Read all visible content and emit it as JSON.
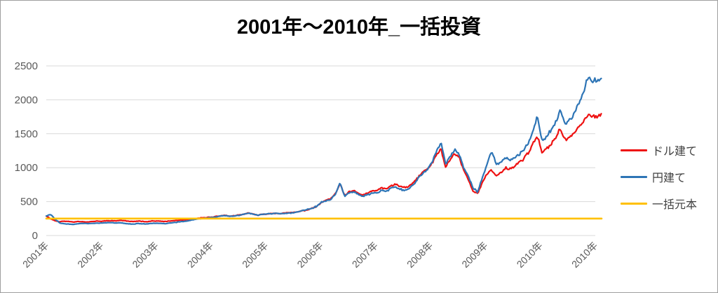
{
  "title": "2001年〜2010年_一括投資",
  "colors": {
    "grid": "#d9d9d9",
    "axis_text": "#595959",
    "legend_text": "#404040",
    "frame_border": "#9e9e9e",
    "background": "#ffffff",
    "title_text": "#000000"
  },
  "chart_data": {
    "type": "line",
    "title": "2001年〜2010年_一括投資",
    "xlabel": "",
    "ylabel": "",
    "ylim": [
      0,
      2500
    ],
    "y_ticks": [
      0,
      500,
      1000,
      1500,
      2000,
      2500
    ],
    "x_tick_labels": [
      "2001年",
      "2002年",
      "2003年",
      "2004年",
      "2005年",
      "2006年",
      "2007年",
      "2008年",
      "2009年",
      "2010年",
      "2010年"
    ],
    "x_start_year": 2001,
    "x_step_months": 1,
    "grid": true,
    "legend_position": "right",
    "series": [
      {
        "name": "ドル建て",
        "color": "#ee1111",
        "width": 2.2,
        "jitter_pct": 2.2,
        "seed": 11,
        "values": [
          290,
          245,
          215,
          205,
          212,
          206,
          200,
          208,
          204,
          200,
          206,
          212,
          210,
          216,
          220,
          214,
          224,
          218,
          210,
          205,
          214,
          209,
          205,
          214,
          214,
          210,
          206,
          214,
          220,
          226,
          231,
          236,
          245,
          254,
          260,
          266,
          271,
          281,
          291,
          296,
          286,
          291,
          301,
          311,
          331,
          321,
          296,
          311,
          319,
          324,
          329,
          325,
          331,
          336,
          341,
          351,
          366,
          381,
          401,
          431,
          490,
          520,
          540,
          620,
          760,
          590,
          640,
          660,
          620,
          600,
          625,
          655,
          665,
          700,
          680,
          730,
          755,
          730,
          705,
          720,
          780,
          860,
          935,
          975,
          1060,
          1180,
          1280,
          1010,
          1120,
          1210,
          1150,
          950,
          820,
          660,
          615,
          780,
          900,
          970,
          880,
          920,
          1000,
          980,
          1020,
          1080,
          1130,
          1220,
          1350,
          1460,
          1220,
          1270,
          1350,
          1450,
          1580,
          1400,
          1450,
          1520,
          1600,
          1680,
          1790,
          1750,
          1755,
          1760
        ]
      },
      {
        "name": "円建て",
        "color": "#2e75b6",
        "width": 2.2,
        "jitter_pct": 2.2,
        "seed": 47,
        "values": [
          290,
          310,
          235,
          185,
          170,
          168,
          165,
          175,
          180,
          175,
          178,
          182,
          185,
          188,
          192,
          186,
          190,
          178,
          172,
          168,
          178,
          172,
          170,
          180,
          182,
          178,
          175,
          185,
          192,
          200,
          208,
          218,
          232,
          245,
          252,
          258,
          265,
          278,
          288,
          295,
          282,
          288,
          298,
          312,
          332,
          318,
          298,
          312,
          318,
          322,
          328,
          322,
          328,
          332,
          338,
          352,
          368,
          385,
          405,
          435,
          495,
          515,
          535,
          610,
          780,
          575,
          625,
          645,
          605,
          580,
          600,
          625,
          630,
          665,
          645,
          695,
          715,
          690,
          665,
          690,
          750,
          840,
          915,
          950,
          1080,
          1250,
          1375,
          1060,
          1160,
          1280,
          1190,
          990,
          870,
          700,
          640,
          850,
          1050,
          1250,
          1060,
          1080,
          1150,
          1100,
          1150,
          1200,
          1260,
          1360,
          1520,
          1750,
          1400,
          1450,
          1560,
          1670,
          1855,
          1640,
          1700,
          1800,
          1950,
          2100,
          2345,
          2280,
          2290,
          2300
        ]
      },
      {
        "name": "一括元本",
        "color": "#ffc000",
        "width": 2.6,
        "jitter_pct": 0,
        "constant": 250
      }
    ]
  }
}
